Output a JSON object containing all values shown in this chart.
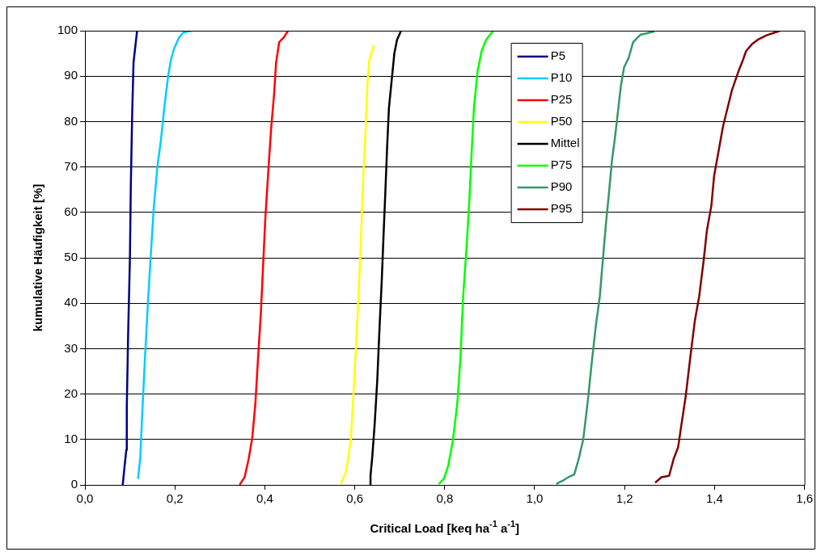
{
  "chart_data": {
    "type": "line",
    "xlabel": "Critical Load [keq ha$^{-1}$ a$^{-1}$]",
    "ylabel": "kumulative Häufigkeit [%]",
    "xlim": [
      0,
      1.6
    ],
    "xticks": [
      {
        "value": 0,
        "label": "0,0"
      },
      {
        "value": 0.2,
        "label": "0,2"
      },
      {
        "value": 0.4,
        "label": "0,4"
      },
      {
        "value": 0.6,
        "label": "0,6"
      },
      {
        "value": 0.8,
        "label": "0,8"
      },
      {
        "value": 1.0,
        "label": "1,0"
      },
      {
        "value": 1.2,
        "label": "1,2"
      },
      {
        "value": 1.4,
        "label": "1,4"
      },
      {
        "value": 1.6,
        "label": "1,6"
      }
    ],
    "ylim": [
      0,
      100
    ],
    "yticks": [
      0,
      10,
      20,
      30,
      40,
      50,
      60,
      70,
      80,
      90,
      100
    ],
    "grid": "y",
    "legend": "top right",
    "marker": "none",
    "line_style": "solid",
    "series": [
      {
        "name": "P5",
        "color": "#000080",
        "x": [
          0.084,
          0.088,
          0.092,
          0.093,
          0.096,
          0.1,
          0.102,
          0.105,
          0.108,
          0.112,
          0.116
        ],
        "values": [
          0,
          4,
          7.7,
          17,
          33,
          50,
          66,
          81.5,
          93,
          96.5,
          100
        ]
      },
      {
        "name": "P10",
        "color": "#00ccff",
        "x": [
          0.118,
          0.123,
          0.128,
          0.133,
          0.14,
          0.146,
          0.153,
          0.161,
          0.169,
          0.177,
          0.185,
          0.191,
          0.198,
          0.209,
          0.219,
          0.237
        ],
        "values": [
          1.3,
          6,
          17,
          27,
          40,
          50,
          61,
          70,
          76,
          83.5,
          90,
          93.5,
          96,
          98.5,
          99.6,
          100
        ]
      },
      {
        "name": "P25",
        "color": "#ff0000",
        "x": [
          0.344,
          0.355,
          0.364,
          0.372,
          0.379,
          0.385,
          0.391,
          0.396,
          0.401,
          0.407,
          0.414,
          0.421,
          0.425,
          0.432,
          0.442,
          0.452
        ],
        "values": [
          0,
          1.7,
          5.7,
          10.3,
          18,
          28,
          37.5,
          48,
          58.5,
          68,
          78.5,
          86.5,
          93,
          97.5,
          98.5,
          100
        ]
      },
      {
        "name": "P50",
        "color": "#ffff00",
        "x": [
          0.569,
          0.581,
          0.591,
          0.597,
          0.604,
          0.609,
          0.614,
          0.619,
          0.624,
          0.628,
          0.632,
          0.643
        ],
        "values": [
          0.2,
          3,
          9.7,
          20,
          33,
          43,
          55,
          68,
          78,
          88,
          93.5,
          96.8
        ]
      },
      {
        "name": "Mittel",
        "color": "#000000",
        "x": [
          0.635,
          0.635,
          0.639,
          0.644,
          0.65,
          0.655,
          0.66,
          0.664,
          0.668,
          0.672,
          0.676,
          0.683,
          0.688,
          0.694,
          0.703
        ],
        "values": [
          0,
          2,
          6.3,
          13,
          23,
          34.5,
          45,
          55,
          64.5,
          74.5,
          83,
          90,
          95,
          98,
          100
        ]
      },
      {
        "name": "P75",
        "color": "#00ff00",
        "x": [
          0.787,
          0.798,
          0.808,
          0.818,
          0.828,
          0.835,
          0.841,
          0.848,
          0.855,
          0.86,
          0.865,
          0.873,
          0.882,
          0.892,
          0.908
        ],
        "values": [
          0.2,
          1.3,
          4.3,
          9.7,
          18,
          28,
          41.5,
          51.5,
          63,
          73.5,
          83,
          91,
          95.5,
          98,
          100
        ]
      },
      {
        "name": "P90",
        "color": "#339966",
        "x": [
          1.048,
          1.062,
          1.075,
          1.088,
          1.098,
          1.108,
          1.118,
          1.127,
          1.136,
          1.145,
          1.152,
          1.159,
          1.165,
          1.172,
          1.179,
          1.185,
          1.192,
          1.199,
          1.209,
          1.219,
          1.235,
          1.266
        ],
        "values": [
          0.2,
          0.9,
          1.7,
          2.3,
          5.7,
          10,
          18.3,
          27,
          35,
          41.6,
          50,
          58,
          64,
          71.5,
          76.8,
          82,
          88,
          92,
          94,
          97.5,
          99.1,
          99.8
        ]
      },
      {
        "name": "P95",
        "color": "#800000",
        "x": [
          1.268,
          1.282,
          1.299,
          1.309,
          1.319,
          1.326,
          1.336,
          1.346,
          1.356,
          1.366,
          1.376,
          1.383,
          1.393,
          1.399,
          1.409,
          1.419,
          1.429,
          1.439,
          1.453,
          1.463,
          1.47,
          1.483,
          1.496,
          1.516,
          1.546
        ],
        "values": [
          0.5,
          1.7,
          2,
          5.7,
          8.3,
          13,
          19.6,
          28,
          36,
          41.6,
          49.6,
          56,
          61.5,
          68,
          73.5,
          79,
          83,
          87,
          91,
          93.5,
          95.5,
          97,
          98,
          99,
          100
        ]
      }
    ]
  }
}
